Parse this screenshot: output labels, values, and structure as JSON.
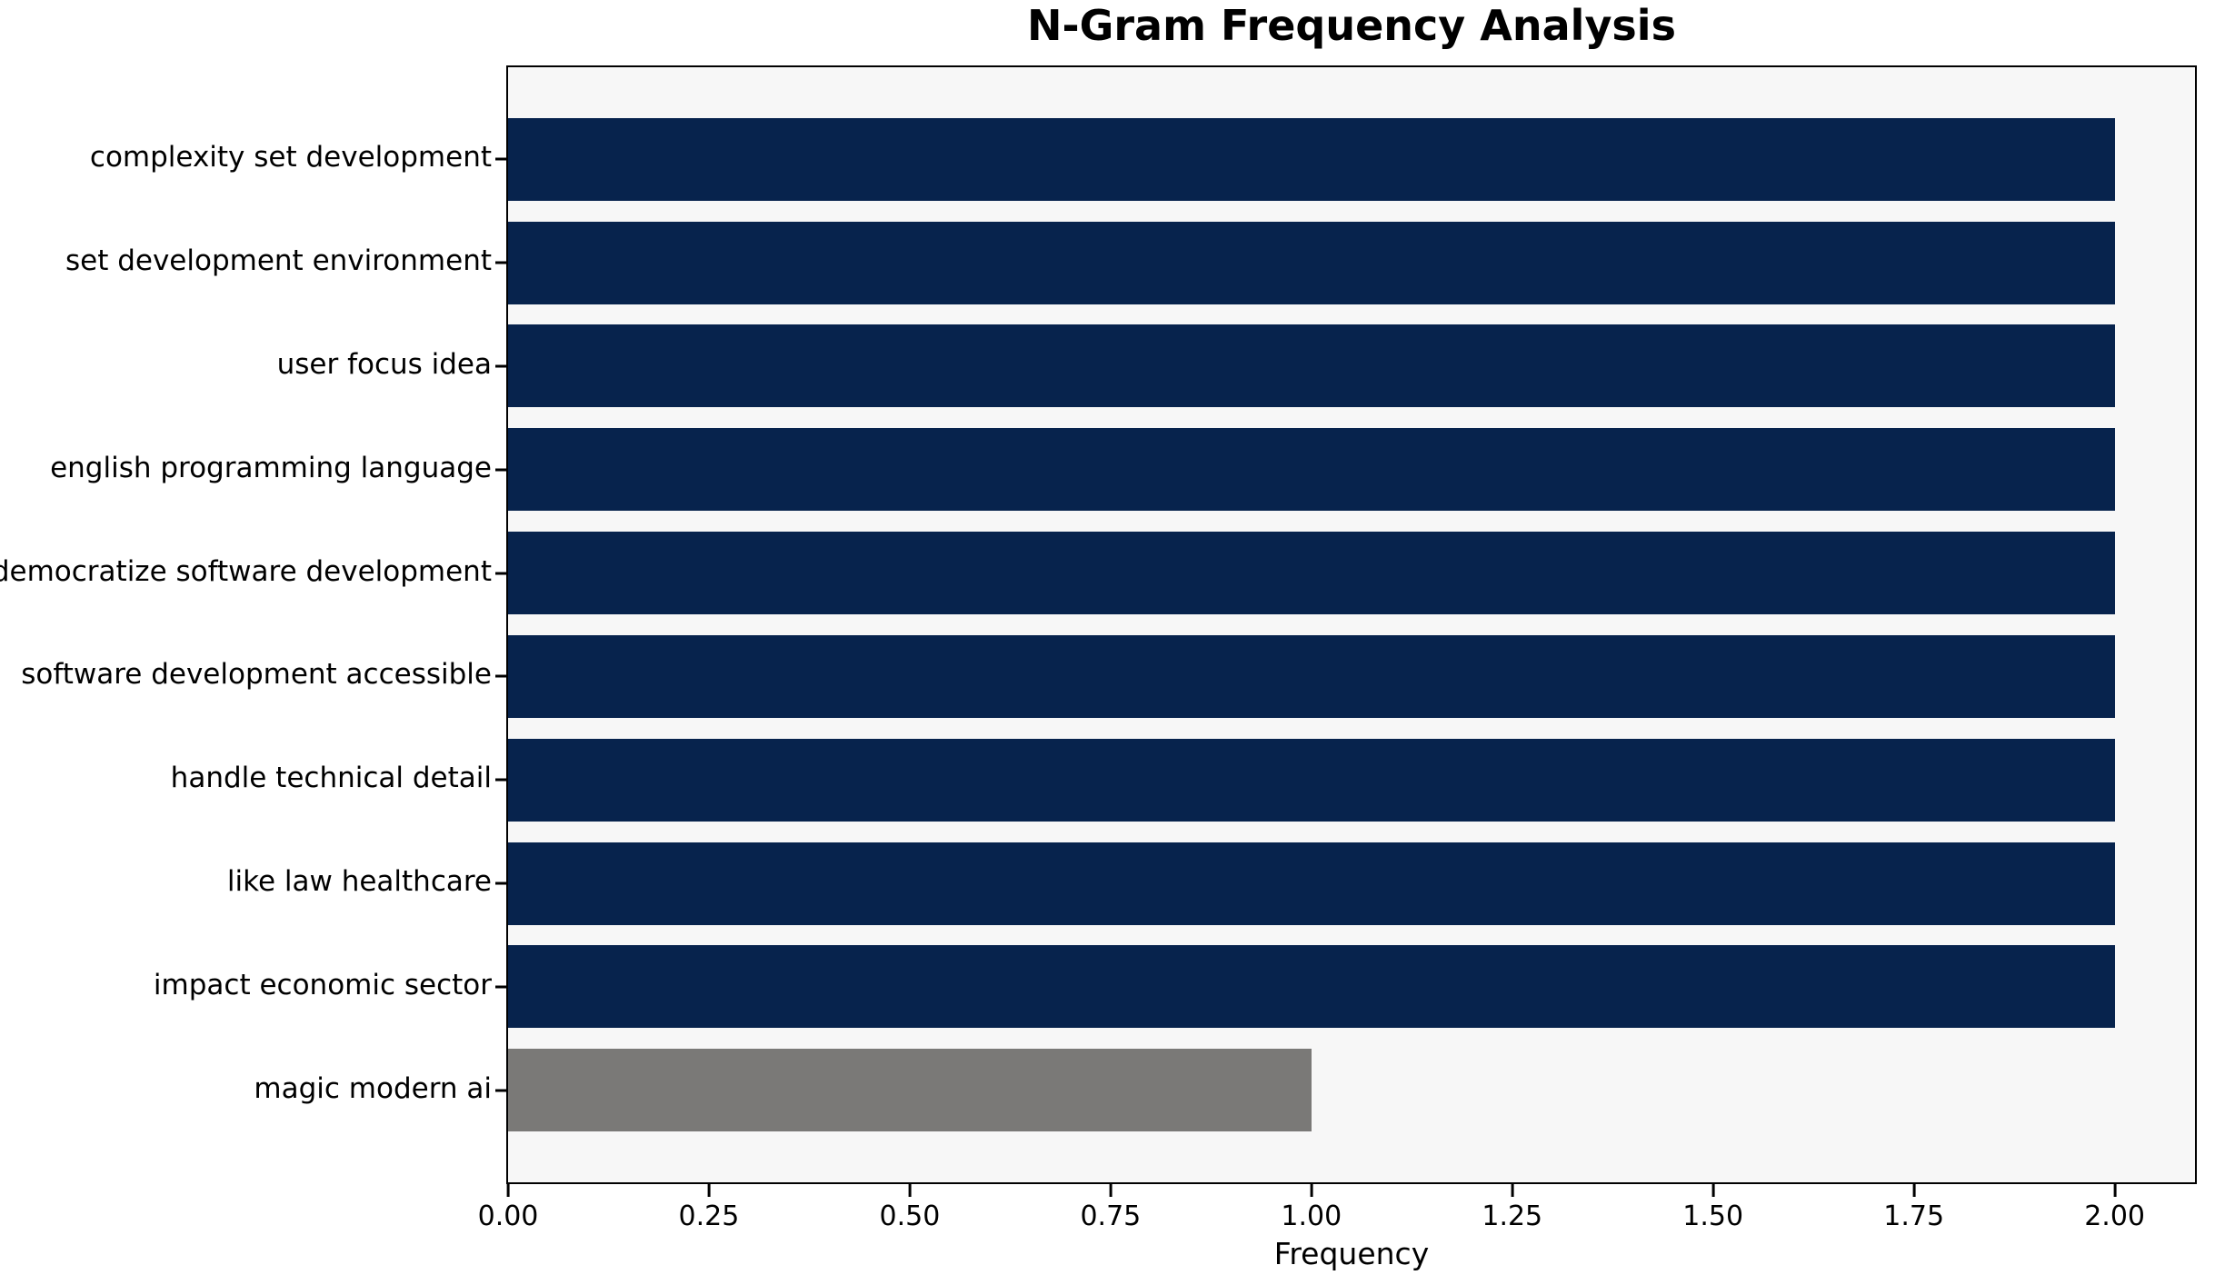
{
  "chart_data": {
    "type": "bar",
    "orientation": "horizontal",
    "title": "N-Gram Frequency Analysis",
    "xlabel": "Frequency",
    "ylabel": "",
    "categories": [
      "complexity set development",
      "set development environment",
      "user focus idea",
      "english programming language",
      "democratize software development",
      "software development accessible",
      "handle technical detail",
      "like law healthcare",
      "impact economic sector",
      "magic modern ai"
    ],
    "values": [
      2,
      2,
      2,
      2,
      2,
      2,
      2,
      2,
      2,
      1
    ],
    "bar_colors": [
      "#07234d",
      "#07234d",
      "#07234d",
      "#07234d",
      "#07234d",
      "#07234d",
      "#07234d",
      "#07234d",
      "#07234d",
      "#7a7977"
    ],
    "xlim": [
      0,
      2.1
    ],
    "xticks": [
      0,
      0.25,
      0.5,
      0.75,
      1.0,
      1.25,
      1.5,
      1.75,
      2.0
    ],
    "xtick_labels": [
      "0.00",
      "0.25",
      "0.50",
      "0.75",
      "1.00",
      "1.25",
      "1.50",
      "1.75",
      "2.00"
    ],
    "grid": false,
    "legend": "none",
    "bar_relative_height": 0.8,
    "colors": {
      "bar_primary": "#07234d",
      "bar_highlight": "#7a7977",
      "plot_background": "#f7f7f7",
      "figure_background": "#ffffff",
      "spine": "#000000",
      "text": "#000000"
    }
  }
}
